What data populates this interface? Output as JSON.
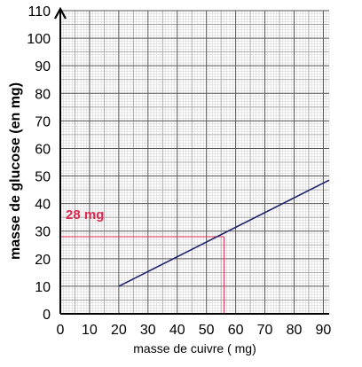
{
  "chart_data": {
    "type": "line",
    "title": "",
    "xlabel": "masse de cuivre ( mg)",
    "ylabel": "masse de glucose (en mg)",
    "xlim": [
      0,
      92
    ],
    "ylim": [
      0,
      110
    ],
    "x_ticks": [
      0,
      10,
      20,
      30,
      40,
      50,
      60,
      70,
      80,
      90
    ],
    "y_ticks": [
      0,
      10,
      20,
      30,
      40,
      50,
      60,
      70,
      80,
      90,
      100,
      110
    ],
    "x_tick_labels": [
      "0",
      "10",
      "20",
      "30",
      "40",
      "50",
      "60",
      "70",
      "80",
      "90"
    ],
    "y_tick_labels": [
      "0",
      "10",
      "20",
      "30",
      "40",
      "50",
      "60",
      "70",
      "80",
      "90",
      "100",
      "110"
    ],
    "grid": "millimeter paper (minor every 1 unit, major every 10)",
    "series": [
      {
        "x": [
          20,
          92
        ],
        "y": [
          10,
          48.5
        ],
        "color": "#1f1f6e"
      }
    ],
    "annotations": [
      {
        "text": "28 mg",
        "x": 56,
        "y": 28,
        "color": "#e0284e",
        "style": "dashed guide lines from axes to point"
      }
    ]
  }
}
